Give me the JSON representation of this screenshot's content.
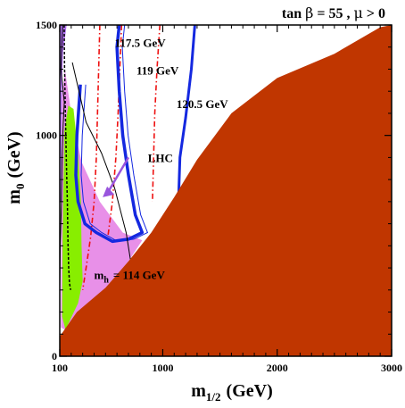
{
  "chart_data": {
    "type": "area",
    "title": "tan β = 55 ,  μ > 0",
    "title_parts": {
      "tb": "tan",
      "beta": "β",
      "eq": "= 55 ,",
      "mu": "μ",
      "gt": "> 0"
    },
    "xlabel": {
      "base": "m",
      "sub": "1/2",
      "unit": "(GeV)"
    },
    "ylabel": {
      "base": "m",
      "sub": "0",
      "unit": "(GeV)"
    },
    "xlim": [
      100,
      3000
    ],
    "ylim": [
      0,
      1500
    ],
    "grid": false,
    "x_ticks": [
      {
        "value": 100,
        "label": "100"
      },
      {
        "value": 1000,
        "label": "1000"
      },
      {
        "value": 2000,
        "label": "2000"
      },
      {
        "value": 3000,
        "label": "3000"
      }
    ],
    "y_ticks": [
      {
        "value": 0,
        "label": "0"
      },
      {
        "value": 1000,
        "label": "1000"
      },
      {
        "value": 1500,
        "label": "1500"
      }
    ],
    "colors": {
      "excluded": "#c03600",
      "g_minus_2": "#e890e8",
      "b_to_s_gamma": "#88ee00",
      "dark_matter": "#1428e0",
      "higgs": "#ee1111",
      "lhc": "#9955dd",
      "chargino": "#000000",
      "purple_band": "#b070f0"
    },
    "regions": {
      "excluded": [
        [
          100,
          90
        ],
        [
          250,
          200
        ],
        [
          500,
          310
        ],
        [
          700,
          430
        ],
        [
          900,
          560
        ],
        [
          1100,
          720
        ],
        [
          1300,
          890
        ],
        [
          1600,
          1100
        ],
        [
          2000,
          1260
        ],
        [
          2500,
          1370
        ],
        [
          2900,
          1490
        ],
        [
          3000,
          1500
        ],
        [
          3000,
          0
        ],
        [
          100,
          0
        ]
      ],
      "g_minus_2": [
        [
          145,
          1300
        ],
        [
          200,
          1100
        ],
        [
          290,
          880
        ],
        [
          450,
          700
        ],
        [
          650,
          560
        ],
        [
          820,
          525
        ],
        [
          700,
          430
        ],
        [
          500,
          310
        ],
        [
          300,
          210
        ],
        [
          180,
          110
        ],
        [
          110,
          130
        ],
        [
          120,
          1180
        ]
      ],
      "b_to_s_gamma": [
        [
          220,
          1120
        ],
        [
          260,
          920
        ],
        [
          285,
          700
        ],
        [
          290,
          500
        ],
        [
          300,
          340
        ],
        [
          260,
          240
        ],
        [
          150,
          120
        ],
        [
          120,
          180
        ],
        [
          125,
          550
        ],
        [
          140,
          1020
        ],
        [
          175,
          1135
        ]
      ],
      "purple_band": [
        [
          100,
          1500
        ],
        [
          160,
          1500
        ],
        [
          130,
          1380
        ],
        [
          120,
          1250
        ],
        [
          116,
          1000
        ],
        [
          112,
          700
        ],
        [
          100,
          700
        ]
      ]
    },
    "contours": {
      "mh_114": {
        "label": "m",
        "label_sub": "h",
        "label_suffix": "= 114 GeV",
        "points": [
          [
            138,
            1500
          ],
          [
            142,
            1300
          ],
          [
            150,
            1080
          ],
          [
            158,
            880
          ],
          [
            166,
            700
          ],
          [
            172,
            520
          ],
          [
            178,
            400
          ],
          [
            185,
            330
          ],
          [
            195,
            300
          ]
        ]
      },
      "h_117_5": {
        "label": "117.5 GeV",
        "points": [
          [
            450,
            1500
          ],
          [
            440,
            1300
          ],
          [
            430,
            1100
          ],
          [
            420,
            900
          ],
          [
            400,
            700
          ],
          [
            370,
            540
          ],
          [
            330,
            400
          ],
          [
            300,
            300
          ]
        ]
      },
      "h_119": {
        "label": "119 GeV",
        "points": [
          [
            640,
            1500
          ],
          [
            625,
            1300
          ],
          [
            610,
            1100
          ],
          [
            590,
            900
          ],
          [
            560,
            700
          ],
          [
            520,
            540
          ]
        ]
      },
      "h_120_5": {
        "label": "120.5 GeV",
        "points": [
          [
            975,
            1500
          ],
          [
            950,
            1300
          ],
          [
            930,
            1100
          ],
          [
            920,
            900
          ],
          [
            910,
            700
          ]
        ]
      },
      "chargino": {
        "points": [
          [
            100,
            300
          ],
          [
            105,
            500
          ],
          [
            115,
            700
          ],
          [
            120,
            900
          ],
          [
            130,
            1050
          ],
          [
            140,
            1150
          ],
          [
            110,
            1300
          ],
          [
            125,
            1500
          ]
        ]
      },
      "lhc": {
        "label": "LHC",
        "points": [
          [
            210,
            1330
          ],
          [
            330,
            1060
          ],
          [
            465,
            920
          ],
          [
            580,
            760
          ],
          [
            680,
            560
          ],
          [
            720,
            430
          ]
        ]
      },
      "dm_main": {
        "points": [
          [
            280,
            1230
          ],
          [
            250,
            1000
          ],
          [
            240,
            820
          ],
          [
            260,
            700
          ],
          [
            320,
            600
          ],
          [
            420,
            560
          ],
          [
            560,
            520
          ],
          [
            700,
            530
          ],
          [
            820,
            560
          ],
          [
            760,
            640
          ],
          [
            700,
            820
          ],
          [
            650,
            1000
          ],
          [
            620,
            1200
          ],
          [
            600,
            1400
          ],
          [
            620,
            1500
          ]
        ]
      },
      "dm_right": {
        "points": [
          [
            1280,
            1500
          ],
          [
            1250,
            1300
          ],
          [
            1200,
            1080
          ],
          [
            1150,
            900
          ],
          [
            1140,
            740
          ]
        ]
      }
    },
    "annotations": [
      {
        "text": "117.5 GeV",
        "x": 580,
        "y": 1400
      },
      {
        "text": "119 GeV",
        "x": 770,
        "y": 1275
      },
      {
        "text": "120.5 GeV",
        "x": 1120,
        "y": 1125
      },
      {
        "text": "LHC",
        "x": 870,
        "y": 880
      },
      {
        "text": "m_h = 114 GeV",
        "x": 400,
        "y": 350
      }
    ]
  }
}
